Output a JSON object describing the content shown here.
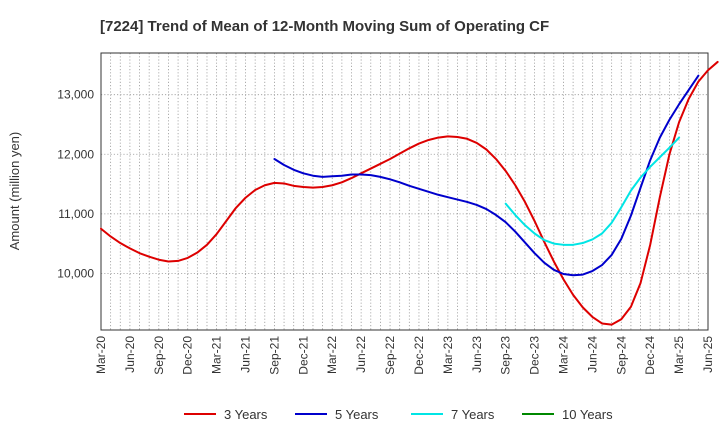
{
  "chart_data": {
    "type": "line",
    "title": "[7224]  Trend of Mean of 12-Month Moving Sum of Operating CF",
    "xlabel": "",
    "ylabel": "Amount (million yen)",
    "ylim": [
      9050,
      13700
    ],
    "yticks": [
      10000,
      11000,
      12000,
      13000
    ],
    "ytick_labels": [
      "10,000",
      "11,000",
      "12,000",
      "13,000"
    ],
    "x_start": "Mar-20",
    "x_end": "Jun-25",
    "xtick_labels": [
      "Mar-20",
      "Jun-20",
      "Sep-20",
      "Dec-20",
      "Mar-21",
      "Jun-21",
      "Sep-21",
      "Dec-21",
      "Mar-22",
      "Jun-22",
      "Sep-22",
      "Dec-22",
      "Mar-23",
      "Jun-23",
      "Sep-23",
      "Dec-23",
      "Mar-24",
      "Jun-24",
      "Sep-24",
      "Dec-24",
      "Mar-25",
      "Jun-25"
    ],
    "grid": true,
    "legend_position": "bottom",
    "series": [
      {
        "name": "3 Years",
        "color": "#dd0000",
        "start": "Mar-20",
        "values": [
          10750,
          10620,
          10510,
          10420,
          10340,
          10280,
          10230,
          10200,
          10210,
          10260,
          10350,
          10480,
          10660,
          10880,
          11100,
          11270,
          11400,
          11480,
          11520,
          11510,
          11470,
          11450,
          11440,
          11450,
          11480,
          11530,
          11600,
          11680,
          11760,
          11840,
          11920,
          12010,
          12100,
          12180,
          12240,
          12280,
          12300,
          12290,
          12260,
          12190,
          12080,
          11920,
          11720,
          11480,
          11200,
          10880,
          10530,
          10200,
          9900,
          9640,
          9430,
          9270,
          9160,
          9140,
          9230,
          9440,
          9840,
          10480,
          11280,
          12000,
          12540,
          12930,
          13220,
          13410,
          13550
        ]
      },
      {
        "name": "5 Years",
        "color": "#0000cc",
        "start": "Sep-21",
        "values": [
          11920,
          11820,
          11740,
          11680,
          11640,
          11620,
          11630,
          11640,
          11660,
          11660,
          11650,
          11620,
          11580,
          11530,
          11470,
          11420,
          11370,
          11320,
          11280,
          11240,
          11200,
          11150,
          11080,
          10980,
          10860,
          10700,
          10520,
          10340,
          10180,
          10060,
          9990,
          9970,
          9980,
          10040,
          10140,
          10310,
          10580,
          10970,
          11440,
          11900,
          12280,
          12580,
          12840,
          13080,
          13320
        ]
      },
      {
        "name": "7 Years",
        "color": "#00e5e5",
        "start": "Sep-23",
        "values": [
          11170,
          10980,
          10810,
          10670,
          10560,
          10500,
          10480,
          10480,
          10510,
          10570,
          10670,
          10850,
          11110,
          11390,
          11610,
          11790,
          11950,
          12110,
          12280
        ]
      },
      {
        "name": "10 Years",
        "color": "#008800",
        "start": "Mar-25",
        "values": []
      }
    ]
  }
}
